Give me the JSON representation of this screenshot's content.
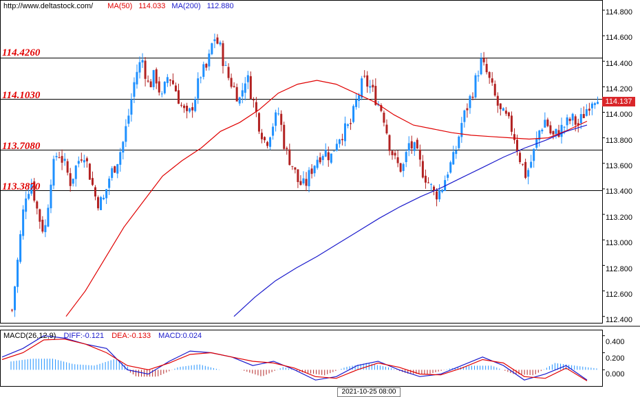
{
  "header": {
    "url": "http://www.deltastock.com/",
    "ma50_label": "MA(50)",
    "ma50_value": "114.033",
    "ma200_label": "MA(200)",
    "ma200_value": "112.880"
  },
  "levels": [
    "114.4260",
    "114.1030",
    "113.7080",
    "113.3870"
  ],
  "current_price": "114.137",
  "macd": {
    "title": "MACD(26,12,9)",
    "diff": "DIFF:-0.121",
    "dea": "DEA:-0.133",
    "macd": "MACD:0.024"
  },
  "date_label": "2021-10-25 08:00",
  "colors": {
    "up": "#1e90ff",
    "down": "#b22222",
    "ma50": "#e00000",
    "ma200": "#1a1acc",
    "levels": "#e00000"
  },
  "chart_data": [
    {
      "type": "candlestick",
      "title": "",
      "ylim": [
        112.35,
        114.88
      ],
      "yticks": [
        "114.800",
        "114.600",
        "114.400",
        "114.200",
        "114.000",
        "113.800",
        "113.600",
        "113.400",
        "113.200",
        "113.000",
        "112.800",
        "112.600",
        "112.400"
      ],
      "horizontal_levels": [
        114.426,
        114.103,
        113.708,
        113.387
      ],
      "close_path": [
        112.45,
        112.9,
        113.35,
        113.45,
        113.2,
        113.05,
        113.5,
        113.7,
        113.6,
        113.45,
        113.6,
        113.7,
        113.5,
        113.3,
        113.3,
        113.5,
        113.6,
        113.75,
        114.0,
        114.3,
        114.42,
        114.2,
        114.3,
        114.1,
        114.3,
        114.2,
        114.05,
        113.95,
        114.1,
        114.3,
        114.35,
        114.6,
        114.5,
        114.3,
        114.2,
        114.1,
        114.3,
        114.1,
        113.9,
        113.75,
        113.9,
        114.0,
        113.7,
        113.6,
        113.45,
        113.42,
        113.55,
        113.65,
        113.7,
        113.65,
        113.8,
        113.85,
        113.9,
        114.1,
        114.25,
        114.2,
        114.1,
        114.0,
        113.75,
        113.6,
        113.55,
        113.75,
        113.7,
        113.55,
        113.45,
        113.35,
        113.4,
        113.55,
        113.65,
        113.9,
        114.05,
        114.2,
        114.4,
        114.3,
        114.15,
        114.0,
        113.95,
        113.85,
        113.65,
        113.5,
        113.65,
        113.85,
        113.95,
        113.8,
        113.85,
        113.9,
        113.95,
        113.9,
        114.0,
        114.1,
        114.14
      ],
      "ma50_path": [
        112.4,
        112.6,
        112.85,
        113.1,
        113.3,
        113.5,
        113.62,
        113.72,
        113.85,
        113.92,
        114.02,
        114.15,
        114.22,
        114.25,
        114.22,
        114.15,
        114.08,
        113.98,
        113.9,
        113.87,
        113.84,
        113.82,
        113.81,
        113.8,
        113.79,
        113.8,
        113.86,
        113.93
      ],
      "ma200_path": [
        112.4,
        112.55,
        112.68,
        112.78,
        112.87,
        112.97,
        113.07,
        113.17,
        113.26,
        113.34,
        113.41,
        113.49,
        113.57,
        113.65,
        113.72,
        113.78,
        113.85,
        113.9
      ]
    },
    {
      "type": "line",
      "series_labels": [
        "DIFF",
        "DEA",
        "MACD"
      ],
      "yticks": [
        "0.400",
        "0.200",
        "0.000"
      ],
      "ylim": [
        -0.19,
        0.47
      ],
      "diff_path": [
        0.15,
        0.25,
        0.4,
        0.37,
        0.3,
        0.25,
        0.0,
        -0.05,
        0.1,
        0.22,
        0.2,
        0.15,
        0.05,
        0.1,
        0.0,
        -0.12,
        -0.08,
        0.05,
        0.1,
        0.0,
        -0.08,
        -0.05,
        0.05,
        0.15,
        0.05,
        -0.12,
        -0.05,
        0.05,
        -0.12
      ],
      "dea_path": [
        0.12,
        0.2,
        0.35,
        0.36,
        0.3,
        0.2,
        0.05,
        0.0,
        0.08,
        0.18,
        0.2,
        0.15,
        0.1,
        0.08,
        0.02,
        -0.08,
        -0.1,
        0.0,
        0.08,
        0.03,
        -0.05,
        -0.06,
        0.02,
        0.12,
        0.08,
        -0.08,
        -0.1,
        0.02,
        -0.13
      ]
    }
  ]
}
